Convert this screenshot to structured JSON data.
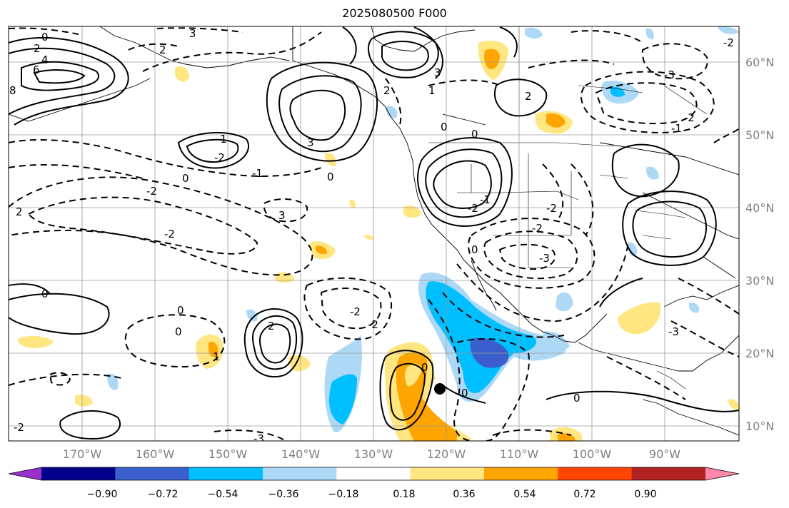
{
  "title": "2025080500 F000",
  "longitude_labels": [
    "170°W",
    "160°W",
    "150°W",
    "140°W",
    "130°W",
    "120°W",
    "110°W",
    "100°W",
    "90°W"
  ],
  "latitude_labels": [
    "60°N",
    "50°N",
    "40°N",
    "30°N",
    "20°N",
    "10°N"
  ],
  "contour_labels": [
    "0",
    "2",
    "4",
    "6",
    "8",
    "3",
    "2",
    "-1",
    "-2",
    "3",
    "0",
    "-2",
    "-1",
    "3",
    "2",
    "3",
    "2",
    "0",
    "0",
    "2",
    "-2",
    "-2",
    "-3",
    "-2",
    "0",
    "-2",
    "0",
    "0",
    "-2",
    "-3",
    "1",
    "-2",
    "-1",
    "-2",
    "0",
    "2",
    "1",
    "0",
    "0",
    "0",
    "0",
    "-2",
    "-2",
    "-3",
    "-1",
    "-3"
  ],
  "colorbar": {
    "tick_labels": [
      "−0.90",
      "−0.72",
      "−0.54",
      "−0.36",
      "−0.18",
      "0.18",
      "0.36",
      "0.54",
      "0.72",
      "0.90"
    ],
    "colors": [
      "#9932cc",
      "#00008b",
      "#3a5fcd",
      "#00bfff",
      "#add8f6",
      "#ffffff",
      "#ffe680",
      "#ffa500",
      "#ff4500",
      "#b22222",
      "#ff88aa"
    ]
  },
  "marker": {
    "type": "storm-center",
    "color": "#000000"
  },
  "legend_note": ""
}
